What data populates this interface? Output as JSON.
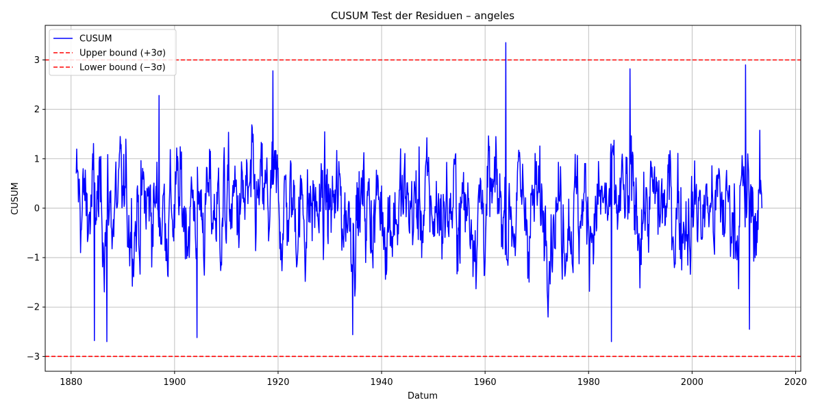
{
  "chart_data": {
    "type": "line",
    "title": "CUSUM Test der Residuen – angeles",
    "xlabel": "Datum",
    "ylabel": "CUSUM",
    "xlim": [
      1875,
      2021
    ],
    "ylim": [
      -3.3,
      3.7
    ],
    "xticks": [
      1880,
      1900,
      1920,
      1940,
      1960,
      1980,
      2000,
      2020
    ],
    "xtick_labels": [
      "1880",
      "1900",
      "1920",
      "1940",
      "1960",
      "1980",
      "2000",
      "2020"
    ],
    "yticks": [
      -3,
      -2,
      -1,
      0,
      1,
      2,
      3
    ],
    "ytick_labels": [
      "−3",
      "−2",
      "−1",
      "0",
      "1",
      "2",
      "3"
    ],
    "grid": true,
    "legend_position": "top-left",
    "series": [
      {
        "name": "CUSUM",
        "color": "#0000ff",
        "style": "solid",
        "x_range": [
          1881.0,
          2013.5
        ],
        "note": "dense monthly residual CUSUM oscillating between about -2.7 and 3.35",
        "key_points": [
          {
            "x": 1881.0,
            "y": 0.7
          },
          {
            "x": 1884.5,
            "y": -2.68
          },
          {
            "x": 1886.9,
            "y": -2.7
          },
          {
            "x": 1897.0,
            "y": 2.28
          },
          {
            "x": 1904.3,
            "y": -2.62
          },
          {
            "x": 1919.0,
            "y": 2.78
          },
          {
            "x": 1934.4,
            "y": -2.56
          },
          {
            "x": 1964.0,
            "y": 3.35
          },
          {
            "x": 1984.4,
            "y": -2.7
          },
          {
            "x": 1988.0,
            "y": 2.82
          },
          {
            "x": 2010.3,
            "y": 2.9
          },
          {
            "x": 2011.1,
            "y": -2.45
          },
          {
            "x": 2013.5,
            "y": 0.0
          }
        ]
      },
      {
        "name": "Upper bound (+3σ)",
        "color": "#ff0000",
        "style": "dashed",
        "constant": 3
      },
      {
        "name": "Lower bound (−3σ)",
        "color": "#ff0000",
        "style": "dashed",
        "constant": -3
      }
    ]
  }
}
